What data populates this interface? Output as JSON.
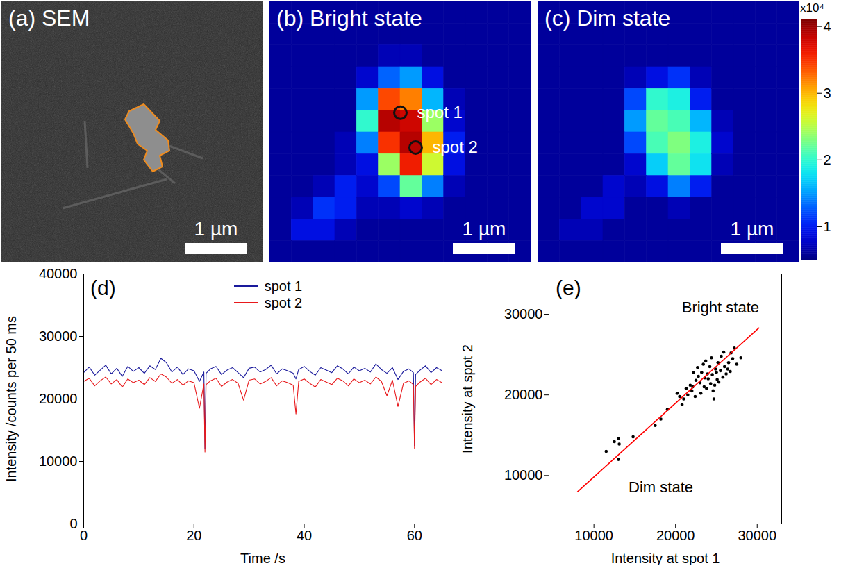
{
  "chart_data": [
    {
      "type": "image",
      "title": "(a) SEM",
      "scale_bar": "1 µm"
    },
    {
      "type": "heatmap",
      "title": "(b) Bright state",
      "scale_bar": "1 µm",
      "cells": [
        [
          0.6,
          0.6,
          0.6,
          0.6,
          0.6,
          0.6,
          0.6,
          0.6,
          0.6,
          0.6,
          0.6,
          0.6
        ],
        [
          0.6,
          0.6,
          0.6,
          0.6,
          0.6,
          0.6,
          0.6,
          0.6,
          0.6,
          0.6,
          0.6,
          0.6
        ],
        [
          0.6,
          0.6,
          0.6,
          0.6,
          0.6,
          0.7,
          0.7,
          0.6,
          0.6,
          0.6,
          0.6,
          0.6
        ],
        [
          0.6,
          0.6,
          0.6,
          0.6,
          0.8,
          1.3,
          1.5,
          0.9,
          0.6,
          0.6,
          0.6,
          0.6
        ],
        [
          0.6,
          0.6,
          0.6,
          0.6,
          1.5,
          3.4,
          3.2,
          1.6,
          0.7,
          0.6,
          0.6,
          0.6
        ],
        [
          0.6,
          0.6,
          0.6,
          0.6,
          2.0,
          3.9,
          3.8,
          2.4,
          0.8,
          0.6,
          0.6,
          0.6
        ],
        [
          0.6,
          0.6,
          0.6,
          0.7,
          1.4,
          3.5,
          3.9,
          3.0,
          1.0,
          0.6,
          0.6,
          0.6
        ],
        [
          0.6,
          0.6,
          0.6,
          0.7,
          0.9,
          2.4,
          3.6,
          2.6,
          0.9,
          0.6,
          0.6,
          0.6
        ],
        [
          0.6,
          0.6,
          0.7,
          1.0,
          0.8,
          1.2,
          2.2,
          1.4,
          0.7,
          0.6,
          0.6,
          0.6
        ],
        [
          0.6,
          0.7,
          1.1,
          1.0,
          0.7,
          0.7,
          0.8,
          0.7,
          0.6,
          0.6,
          0.6,
          0.6
        ],
        [
          0.6,
          0.9,
          0.9,
          0.7,
          0.6,
          0.6,
          0.6,
          0.6,
          0.6,
          0.6,
          0.6,
          0.6
        ],
        [
          0.6,
          0.6,
          0.6,
          0.6,
          0.6,
          0.6,
          0.6,
          0.6,
          0.6,
          0.6,
          0.6,
          0.6
        ]
      ],
      "spots": [
        {
          "label": "spot 1",
          "x": 6.0,
          "y": 5.1
        },
        {
          "label": "spot 2",
          "x": 6.7,
          "y": 6.7
        }
      ]
    },
    {
      "type": "heatmap",
      "title": "(c) Dim state",
      "scale_bar": "1 µm",
      "cells": [
        [
          0.6,
          0.6,
          0.6,
          0.6,
          0.6,
          0.6,
          0.6,
          0.6,
          0.6,
          0.6,
          0.6,
          0.6
        ],
        [
          0.6,
          0.6,
          0.6,
          0.6,
          0.6,
          0.6,
          0.6,
          0.6,
          0.6,
          0.6,
          0.6,
          0.6
        ],
        [
          0.6,
          0.6,
          0.6,
          0.6,
          0.6,
          0.6,
          0.6,
          0.6,
          0.6,
          0.6,
          0.6,
          0.6
        ],
        [
          0.6,
          0.6,
          0.6,
          0.6,
          0.7,
          0.9,
          1.1,
          0.7,
          0.6,
          0.6,
          0.6,
          0.6
        ],
        [
          0.6,
          0.6,
          0.6,
          0.6,
          1.2,
          2.0,
          1.9,
          1.0,
          0.6,
          0.6,
          0.6,
          0.6
        ],
        [
          0.6,
          0.6,
          0.6,
          0.6,
          1.5,
          2.2,
          2.1,
          1.6,
          0.7,
          0.6,
          0.6,
          0.6
        ],
        [
          0.6,
          0.6,
          0.6,
          0.6,
          1.2,
          2.1,
          2.3,
          1.9,
          0.8,
          0.6,
          0.6,
          0.6
        ],
        [
          0.6,
          0.6,
          0.6,
          0.6,
          0.8,
          1.7,
          2.2,
          1.8,
          0.7,
          0.6,
          0.6,
          0.6
        ],
        [
          0.6,
          0.6,
          0.6,
          0.8,
          0.7,
          0.9,
          1.4,
          1.0,
          0.6,
          0.6,
          0.6,
          0.6
        ],
        [
          0.6,
          0.6,
          0.8,
          0.8,
          0.6,
          0.6,
          0.7,
          0.6,
          0.6,
          0.6,
          0.6,
          0.6
        ],
        [
          0.6,
          0.7,
          0.7,
          0.6,
          0.6,
          0.6,
          0.6,
          0.6,
          0.6,
          0.6,
          0.6,
          0.6
        ],
        [
          0.6,
          0.6,
          0.6,
          0.6,
          0.6,
          0.6,
          0.6,
          0.6,
          0.6,
          0.6,
          0.6,
          0.6
        ]
      ],
      "colorbar": {
        "title": "x10⁴",
        "range": [
          0.5,
          4.1
        ],
        "ticks": [
          1,
          2,
          3,
          4
        ]
      }
    },
    {
      "type": "line",
      "title": "(d)",
      "xlabel": "Time /s",
      "ylabel": "Intensity /counts per 50 ms",
      "x": [
        0,
        1,
        2,
        3,
        4,
        5,
        6,
        7,
        8,
        9,
        10,
        11,
        12,
        13,
        14,
        15,
        16,
        17,
        18,
        19,
        20,
        21,
        21.8,
        22,
        22.2,
        23,
        24,
        25,
        26,
        27,
        28,
        29,
        30,
        31,
        32,
        33,
        34,
        35,
        36,
        37,
        38,
        38.5,
        39,
        40,
        41,
        42,
        43,
        44,
        45,
        46,
        47,
        48,
        49,
        50,
        51,
        52,
        53,
        54,
        55,
        56,
        57,
        58,
        59,
        59.8,
        60,
        60.2,
        61,
        62,
        63,
        64,
        65
      ],
      "series": [
        {
          "name": "spot 1",
          "color": "#1a1a9c",
          "values": [
            24200,
            25100,
            23800,
            24600,
            25400,
            24000,
            24900,
            23600,
            25200,
            24400,
            25000,
            24100,
            25300,
            24700,
            26500,
            25800,
            24300,
            25100,
            23900,
            24800,
            24500,
            22800,
            24300,
            12000,
            24100,
            24800,
            25200,
            23900,
            24600,
            25000,
            24200,
            23400,
            24900,
            25100,
            24300,
            24700,
            25400,
            24000,
            24800,
            24500,
            24100,
            23200,
            24700,
            25200,
            24400,
            23800,
            25000,
            24600,
            24200,
            25300,
            24800,
            24000,
            25100,
            24500,
            24900,
            24300,
            25600,
            24700,
            24100,
            25000,
            23100,
            24400,
            24800,
            24200,
            12500,
            23900,
            24600,
            25300,
            24200,
            25000,
            24500
          ]
        },
        {
          "name": "spot 2",
          "color": "#e8191c",
          "values": [
            22800,
            23300,
            22100,
            22900,
            23500,
            22400,
            23100,
            21900,
            23200,
            22600,
            23000,
            22300,
            23400,
            22800,
            24000,
            23500,
            22500,
            23100,
            22200,
            22900,
            22600,
            18500,
            22400,
            11500,
            22300,
            22900,
            23300,
            22000,
            22700,
            23100,
            22500,
            19800,
            23000,
            23200,
            22400,
            22800,
            23400,
            22100,
            22900,
            22600,
            22200,
            17600,
            22800,
            23200,
            22500,
            21900,
            23100,
            22700,
            22300,
            23300,
            22900,
            22100,
            23200,
            22600,
            23000,
            22400,
            23500,
            22800,
            20500,
            23000,
            18800,
            22500,
            22900,
            22300,
            12100,
            22000,
            22700,
            23300,
            22300,
            23100,
            22600
          ]
        }
      ],
      "xlim": [
        0,
        65
      ],
      "xticks": [
        0,
        20,
        40,
        60
      ],
      "ylim": [
        0,
        40000
      ],
      "yticks": [
        0,
        10000,
        20000,
        30000,
        40000
      ],
      "legend": "top"
    },
    {
      "type": "scatter",
      "title": "(e)",
      "xlabel": "Intensity at spot 1",
      "ylabel": "Intensity at spot 2",
      "series": [
        {
          "type": "scatter",
          "color": "#000000",
          "x": [
            24000,
            23000,
            25000,
            22000,
            26000,
            24500,
            23500,
            25500,
            21500,
            26500,
            22500,
            24800,
            23200,
            25800,
            21000,
            27000,
            24200,
            23800,
            22800,
            25200,
            20500,
            27500,
            24600,
            23400,
            26200,
            21800,
            25600,
            22400,
            24900,
            23600,
            26800,
            20800,
            28000,
            25300,
            22200,
            24400,
            23100,
            26400,
            21300,
            25900,
            24700,
            22700,
            27200,
            23900,
            20200,
            25100,
            24300,
            26700,
            22100,
            23700,
            19000,
            18200,
            17500,
            12500,
            13000,
            13100,
            11500,
            14800,
            13000
          ],
          "values": [
            22000,
            21500,
            22800,
            20500,
            23500,
            22500,
            21000,
            23000,
            20000,
            24000,
            21800,
            21200,
            22800,
            22200,
            19500,
            24500,
            23500,
            20800,
            22300,
            24000,
            19800,
            23800,
            20500,
            23800,
            22600,
            21200,
            24800,
            19800,
            23200,
            22100,
            25200,
            18800,
            24600,
            21600,
            22800,
            24600,
            20200,
            23200,
            20800,
            25300,
            19500,
            23400,
            25800,
            22600,
            20200,
            21900,
            21400,
            22900,
            21000,
            24200,
            18200,
            17000,
            16200,
            14200,
            14600,
            13900,
            13000,
            14800,
            12000
          ]
        },
        {
          "type": "line",
          "color": "#ff0000",
          "x": [
            8000,
            30200
          ],
          "values": [
            8000,
            28300
          ]
        }
      ],
      "xlim": [
        4500,
        33000
      ],
      "xticks": [
        10000,
        20000,
        30000
      ],
      "ylim": [
        4000,
        35000
      ],
      "yticks": [
        10000,
        20000,
        30000
      ],
      "annotations": [
        {
          "text": "Bright state",
          "x": 25500,
          "y": 30800
        },
        {
          "text": "Dim state",
          "x": 18200,
          "y": 8500
        }
      ]
    }
  ]
}
